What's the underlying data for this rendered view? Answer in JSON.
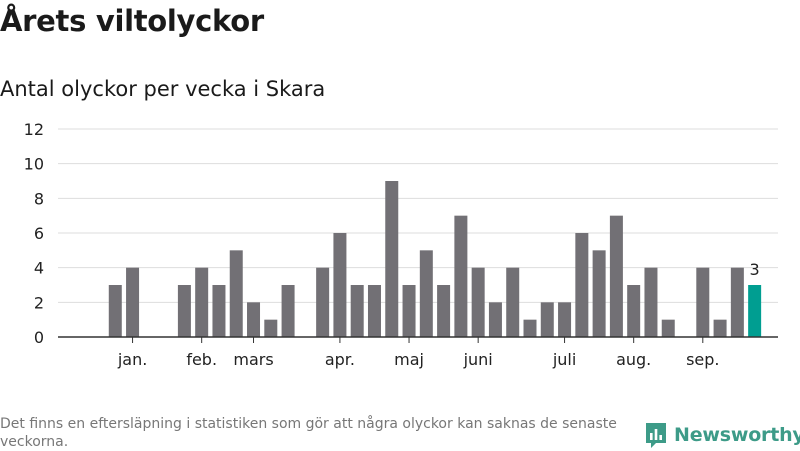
{
  "title": "Årets viltolyckor",
  "subtitle": "Antal olyckor per vecka i Skara",
  "footnote": "Det finns en eftersläpning i statistiken som gör att några olyckor kan saknas de senaste veckorna.",
  "brand": {
    "name": "Newsworthy",
    "color": "#3d9b88",
    "icon": "newsworthy-logo-icon"
  },
  "colors": {
    "bar": "#727075",
    "highlight": "#009e91",
    "grid": "#dddddd",
    "axis": "#333333"
  },
  "chart_data": {
    "type": "bar",
    "title": "Antal olyckor per vecka i Skara",
    "xlabel": "",
    "ylabel": "",
    "weeks": [
      1,
      2,
      3,
      4,
      5,
      6,
      7,
      8,
      9,
      10,
      11,
      12,
      13,
      14,
      15,
      16,
      17,
      18,
      19,
      20,
      21,
      22,
      23,
      24,
      25,
      26,
      27,
      28,
      29,
      30,
      31,
      32,
      33,
      34,
      35,
      36,
      37,
      38,
      39,
      40
    ],
    "values": [
      null,
      3,
      4,
      null,
      null,
      3,
      4,
      3,
      5,
      2,
      1,
      3,
      null,
      4,
      6,
      3,
      3,
      9,
      3,
      5,
      3,
      7,
      4,
      2,
      4,
      1,
      2,
      2,
      6,
      5,
      7,
      3,
      4,
      1,
      null,
      4,
      1,
      4,
      3,
      null
    ],
    "highlight_index": 38,
    "highlight_label": "3",
    "month_labels": [
      {
        "label": "jan.",
        "week": 3
      },
      {
        "label": "feb.",
        "week": 7
      },
      {
        "label": "mars",
        "week": 10
      },
      {
        "label": "apr.",
        "week": 15
      },
      {
        "label": "maj",
        "week": 19
      },
      {
        "label": "juni",
        "week": 23
      },
      {
        "label": "juli",
        "week": 28
      },
      {
        "label": "aug.",
        "week": 32
      },
      {
        "label": "sep.",
        "week": 36
      }
    ],
    "yticks": [
      0,
      2,
      4,
      6,
      8,
      10,
      12
    ],
    "ylim": [
      0,
      12
    ],
    "grid": true,
    "legend": "none"
  }
}
